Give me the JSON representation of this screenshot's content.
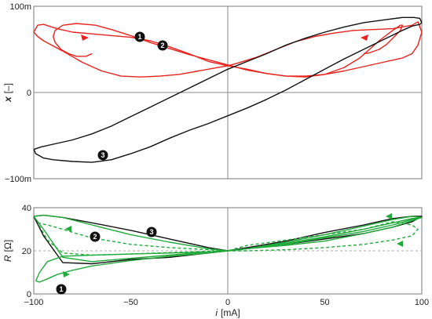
{
  "colors": {
    "red": "#e8231e",
    "black": "#111111",
    "green": "#1faa3a",
    "axis": "#888888",
    "frame": "#777777",
    "dashed": "#aaaaaa"
  },
  "chart_data": [
    {
      "type": "line",
      "xlim": [
        -100,
        100
      ],
      "ylim": [
        -0.1,
        0.1
      ],
      "ylabel_var": "x",
      "ylabel_unit": "[–]",
      "ytick_labels": [
        "100m",
        "0",
        "−100m"
      ],
      "series": [
        {
          "marker": "1",
          "color_key": "red",
          "x": [
            -70,
            -73,
            -78,
            -82,
            -86,
            -89,
            -90,
            -89,
            -85,
            -78,
            -68,
            -60,
            -50,
            -40,
            -30,
            -20,
            -10,
            0,
            10,
            20,
            30,
            40,
            50,
            60,
            68,
            78,
            85,
            89,
            90,
            89,
            86,
            82,
            78,
            73,
            70
          ],
          "y": [
            0.045,
            0.042,
            0.042,
            0.045,
            0.05,
            0.058,
            0.065,
            0.072,
            0.078,
            0.08,
            0.078,
            0.073,
            0.066,
            0.058,
            0.051,
            0.044,
            0.038,
            0.032,
            0.026,
            0.022,
            0.019,
            0.019,
            0.021,
            0.029,
            0.04,
            0.06,
            0.072,
            0.078,
            0.078,
            0.072,
            0.065,
            0.056,
            0.05,
            0.046,
            0.045
          ]
        },
        {
          "marker": "2",
          "color_key": "red",
          "x": [
            -100,
            -98,
            -95,
            -85,
            -75,
            -65,
            -55,
            -45,
            -35,
            -25,
            -15,
            -5,
            0,
            5,
            15,
            25,
            35,
            45,
            55,
            65,
            75,
            85,
            95,
            98,
            100,
            98,
            95,
            90,
            80,
            70,
            60,
            50,
            40,
            30,
            20,
            10,
            0,
            -10,
            -20,
            -30,
            -40,
            -50,
            -60,
            -70,
            -80,
            -88,
            -95,
            -98,
            -100
          ],
          "y": [
            0.07,
            0.065,
            0.06,
            0.048,
            0.035,
            0.025,
            0.019,
            0.018,
            0.019,
            0.021,
            0.025,
            0.029,
            0.031,
            0.034,
            0.041,
            0.05,
            0.059,
            0.065,
            0.069,
            0.072,
            0.073,
            0.074,
            0.078,
            0.082,
            0.07,
            0.055,
            0.045,
            0.04,
            0.035,
            0.03,
            0.025,
            0.021,
            0.018,
            0.019,
            0.022,
            0.027,
            0.031,
            0.036,
            0.045,
            0.053,
            0.06,
            0.064,
            0.066,
            0.068,
            0.07,
            0.074,
            0.079,
            0.078,
            0.07
          ]
        },
        {
          "marker": "3",
          "color_key": "black",
          "x": [
            -100,
            -99,
            -95,
            -90,
            -80,
            -70,
            -60,
            -50,
            -40,
            -30,
            -20,
            -10,
            0,
            10,
            20,
            30,
            40,
            50,
            60,
            70,
            80,
            90,
            95,
            99,
            100,
            99,
            96,
            90,
            80,
            70,
            60,
            50,
            40,
            30,
            20,
            10,
            0,
            -10,
            -20,
            -30,
            -40,
            -50,
            -60,
            -70,
            -80,
            -90,
            -96,
            -100
          ],
          "y": [
            -0.066,
            -0.071,
            -0.076,
            -0.078,
            -0.08,
            -0.081,
            -0.078,
            -0.071,
            -0.063,
            -0.053,
            -0.044,
            -0.036,
            -0.027,
            -0.018,
            -0.008,
            0.003,
            0.015,
            0.027,
            0.039,
            0.05,
            0.061,
            0.072,
            0.077,
            0.079,
            0.081,
            0.086,
            0.087,
            0.087,
            0.084,
            0.081,
            0.076,
            0.07,
            0.063,
            0.055,
            0.045,
            0.036,
            0.027,
            0.016,
            0.005,
            -0.006,
            -0.017,
            -0.028,
            -0.039,
            -0.048,
            -0.055,
            -0.06,
            -0.063,
            -0.066
          ]
        }
      ]
    },
    {
      "type": "line",
      "xlim": [
        -100,
        100
      ],
      "ylim": [
        0,
        40
      ],
      "ylabel_var": "R",
      "ylabel_unit": "[Ω]",
      "xlabel_var": "i",
      "xlabel_unit": "[mA]",
      "xticks": [
        -100,
        -50,
        0,
        50,
        100
      ],
      "xtick_labels": [
        "−100",
        "−50",
        "0",
        "50",
        "100"
      ],
      "yticks": [
        0,
        20,
        40
      ],
      "ytick_labels": [
        "0",
        "20",
        "40"
      ],
      "reference_line": 20,
      "series": [
        {
          "marker": "3",
          "color_key": "black",
          "style": "solid",
          "x": [
            -100,
            -95,
            -85,
            -70,
            -50,
            -30,
            -10,
            0,
            10,
            30,
            50,
            70,
            85,
            95,
            100,
            95,
            85,
            70,
            50,
            30,
            10,
            0,
            -10,
            -30,
            -50,
            -70,
            -85,
            -95,
            -100
          ],
          "y": [
            36,
            36.5,
            35.5,
            33,
            29.5,
            25.5,
            21.5,
            20,
            21.5,
            24.5,
            28.5,
            32,
            35,
            36,
            36,
            33.5,
            31,
            28,
            25.5,
            23,
            21,
            20,
            19,
            17,
            16,
            14,
            14.5,
            27,
            36
          ]
        },
        {
          "marker": "2",
          "color_key": "green",
          "style": "solid",
          "x": [
            -100,
            -95,
            -85,
            -70,
            -50,
            -30,
            -10,
            0,
            10,
            30,
            50,
            70,
            85,
            95,
            100,
            95,
            85,
            70,
            50,
            30,
            10,
            0,
            -10,
            -30,
            -50,
            -70,
            -85,
            -95,
            -100
          ],
          "y": [
            36,
            36.5,
            35.5,
            32,
            27.5,
            24,
            21,
            20,
            21,
            24,
            27.5,
            31.5,
            34.5,
            36,
            35.5,
            34,
            31,
            28,
            24.5,
            22.5,
            21,
            20,
            19.5,
            18,
            16.5,
            15,
            17,
            30,
            36
          ]
        },
        {
          "marker": "",
          "color_key": "green",
          "style": "dashed",
          "x": [
            -98,
            -93,
            -85,
            -78,
            -70,
            -50,
            -30,
            -10,
            0,
            10,
            30,
            50,
            70,
            85,
            95,
            98,
            95,
            85,
            70,
            50,
            30,
            10,
            0,
            -10,
            -30,
            -50,
            -70,
            -85,
            -93,
            -98
          ],
          "y": [
            33,
            32,
            30,
            28,
            26,
            23,
            21.5,
            20.5,
            20,
            20,
            20.5,
            21.5,
            23,
            25,
            27,
            30,
            32,
            33.5,
            30,
            27.5,
            25,
            22.5,
            20,
            19.8,
            19.2,
            18.5,
            18,
            19,
            25,
            33
          ]
        },
        {
          "marker": "1",
          "color_key": "green",
          "style": "solid",
          "x": [
            -99,
            -97,
            -93,
            -88,
            -80,
            -70,
            -50,
            -30,
            -10,
            0,
            10,
            30,
            50,
            70,
            85,
            95,
            100,
            95,
            85,
            70,
            50,
            30,
            10,
            0,
            -10,
            -30,
            -50,
            -70,
            -85,
            -93,
            -97,
            -99
          ],
          "y": [
            6,
            5.5,
            7,
            9,
            11,
            13,
            15.5,
            17.5,
            19,
            20,
            21,
            23.5,
            26.5,
            30,
            33,
            35,
            35.5,
            34.5,
            32,
            29,
            26,
            23,
            21,
            20,
            19.5,
            19,
            18.5,
            18,
            17.5,
            15,
            10,
            6
          ]
        }
      ]
    }
  ]
}
